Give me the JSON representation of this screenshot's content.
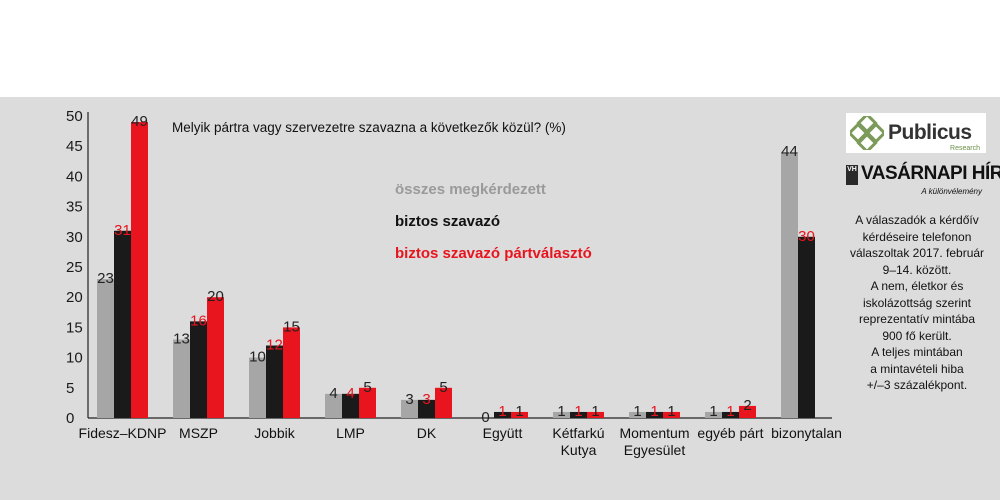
{
  "chart_data": {
    "type": "bar",
    "title": "Melyik pártra vagy szervezetre szavazna a következők közül? (%)",
    "categories": [
      [
        "Fidesz–KDNP"
      ],
      [
        "MSZP"
      ],
      [
        "Jobbik"
      ],
      [
        "LMP"
      ],
      [
        "DK"
      ],
      [
        "Együtt"
      ],
      [
        "Kétfarkú",
        "Kutya"
      ],
      [
        "Momentum",
        "Egyesület"
      ],
      [
        "egyéb párt"
      ],
      [
        "bizonytalan"
      ]
    ],
    "series": [
      {
        "name": "összes megkérdezett",
        "color": "#a6a6a6",
        "label_color": "#222222",
        "values": [
          23,
          13,
          10,
          4,
          3,
          0,
          1,
          1,
          1,
          44
        ]
      },
      {
        "name": "biztos szavazó",
        "color": "#1a1a1a",
        "label_color": "#e8141e",
        "values": [
          31,
          16,
          12,
          4,
          3,
          1,
          1,
          1,
          1,
          30
        ]
      },
      {
        "name": "biztos szavazó pártválasztó",
        "color": "#e8141e",
        "label_color": "#222222",
        "values": [
          49,
          20,
          15,
          5,
          5,
          1,
          1,
          1,
          2,
          null
        ]
      }
    ],
    "yticks": [
      "0",
      "5",
      "10",
      "15",
      "20",
      "25",
      "30",
      "35",
      "40",
      "45",
      "50"
    ],
    "ylim": [
      0,
      50
    ],
    "legend_colors": [
      "#9a9a9a",
      "#111111",
      "#e8141e"
    ]
  },
  "logos": {
    "publicus": "Publicus",
    "publicus_sub": "Research",
    "vh_mark": "VH",
    "vh": "VASÁRNAPI HÍREK",
    "vh_sub": "A különvélemény"
  },
  "note_lines": [
    "A válaszadók a kérdőív",
    "kérdéseire telefonon",
    "válaszoltak 2017. február",
    "9–14. között.",
    "A nem, életkor és",
    "iskolázottság szerint",
    "reprezentatív mintába",
    "900 fő került.",
    "A teljes mintában",
    "a mintavételi hiba",
    "+/–3 százalékpont."
  ]
}
